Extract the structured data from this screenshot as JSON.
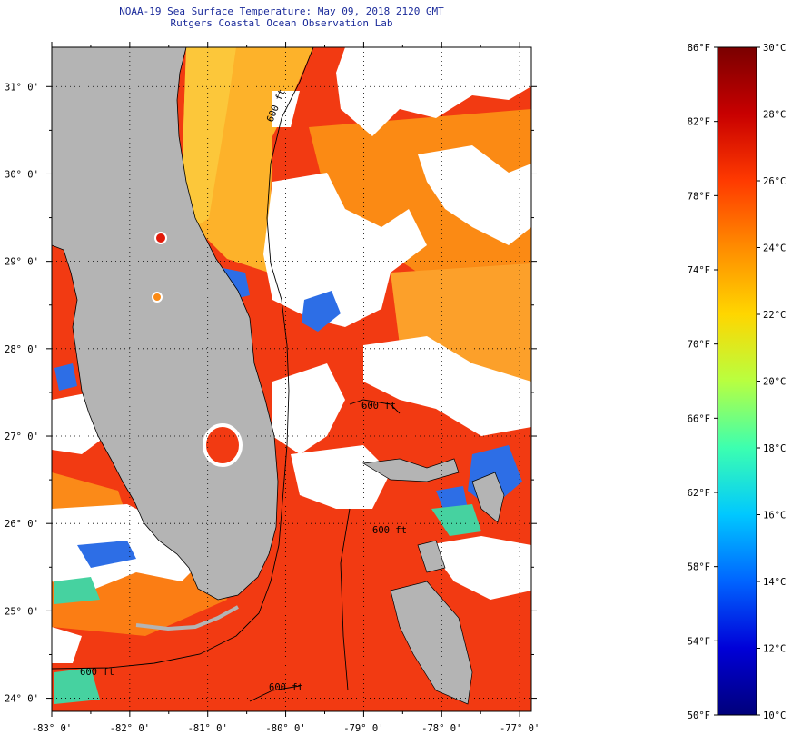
{
  "header": {
    "title": "NOAA-19 Sea Surface Temperature:  May 09, 2018 2120 GMT",
    "subtitle": "Rutgers Coastal Ocean Observation Lab"
  },
  "map": {
    "lon_range": [
      -83,
      -76.85
    ],
    "lat_range": [
      23.85,
      31.45
    ],
    "lat_ticks": [
      {
        "value": 31,
        "label": "31° 0'"
      },
      {
        "value": 30,
        "label": "30° 0'"
      },
      {
        "value": 29,
        "label": "29° 0'"
      },
      {
        "value": 28,
        "label": "28° 0'"
      },
      {
        "value": 27,
        "label": "27° 0'"
      },
      {
        "value": 26,
        "label": "26° 0'"
      },
      {
        "value": 25,
        "label": "25° 0'"
      },
      {
        "value": 24,
        "label": "24° 0'"
      }
    ],
    "lon_ticks": [
      {
        "value": -83,
        "label": "-83° 0'"
      },
      {
        "value": -82,
        "label": "-82° 0'"
      },
      {
        "value": -81,
        "label": "-81° 0'"
      },
      {
        "value": -80,
        "label": "-80° 0'"
      },
      {
        "value": -79,
        "label": "-79° 0'"
      },
      {
        "value": -78,
        "label": "-78° 0'"
      },
      {
        "value": -77,
        "label": "-77° 0'"
      }
    ],
    "isobath_labels": [
      "600 ft",
      "600 ft",
      "600 ft",
      "600 ft",
      "600 ft"
    ],
    "colors": {
      "land": "#b4b4b4",
      "cloud": "#ffffff",
      "water_warm": "#f23a12",
      "water_mid": "#fb7d14",
      "water_cool": "#fdb22a",
      "water_cold": "#2d6ee6"
    }
  },
  "colorbar": {
    "gradient_colors": [
      "#7a0000",
      "#c80000",
      "#ff3a00",
      "#ff8c00",
      "#ffd600",
      "#b8ff40",
      "#3cffb0",
      "#00c8ff",
      "#0064ff",
      "#0000d8",
      "#00007a"
    ],
    "fahrenheit": [
      {
        "value": 86,
        "label": "86°F"
      },
      {
        "value": 82,
        "label": "82°F"
      },
      {
        "value": 78,
        "label": "78°F"
      },
      {
        "value": 74,
        "label": "74°F"
      },
      {
        "value": 70,
        "label": "70°F"
      },
      {
        "value": 66,
        "label": "66°F"
      },
      {
        "value": 62,
        "label": "62°F"
      },
      {
        "value": 58,
        "label": "58°F"
      },
      {
        "value": 54,
        "label": "54°F"
      },
      {
        "value": 50,
        "label": "50°F"
      }
    ],
    "celsius": [
      {
        "value": 30,
        "label": "30°C"
      },
      {
        "value": 28,
        "label": "28°C"
      },
      {
        "value": 26,
        "label": "26°C"
      },
      {
        "value": 24,
        "label": "24°C"
      },
      {
        "value": 22,
        "label": "22°C"
      },
      {
        "value": 20,
        "label": "20°C"
      },
      {
        "value": 18,
        "label": "18°C"
      },
      {
        "value": 16,
        "label": "16°C"
      },
      {
        "value": 14,
        "label": "14°C"
      },
      {
        "value": 12,
        "label": "12°C"
      },
      {
        "value": 10,
        "label": "10°C"
      }
    ]
  }
}
